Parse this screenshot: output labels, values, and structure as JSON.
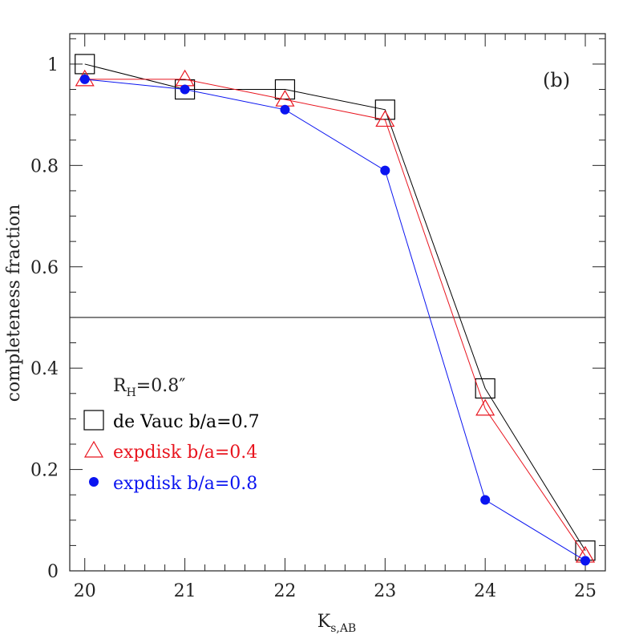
{
  "chart_data": {
    "type": "line",
    "panel_label": "(b)",
    "xlabel": "K",
    "xlabel_sub": "s,AB",
    "ylabel": "completeness fraction",
    "xlim": [
      19.85,
      25.2
    ],
    "ylim": [
      0,
      1.06
    ],
    "x_ticks": [
      "20",
      "21",
      "22",
      "23",
      "24",
      "25"
    ],
    "x_tick_values": [
      20,
      21,
      22,
      23,
      24,
      25
    ],
    "y_ticks": [
      "0",
      "0.2",
      "0.4",
      "0.6",
      "0.8",
      "1"
    ],
    "y_tick_values": [
      0,
      0.2,
      0.4,
      0.6,
      0.8,
      1.0
    ],
    "reference_line": 0.5,
    "legend_header": {
      "text": "R",
      "sub": "H",
      "rest": "=0.8″"
    },
    "series": [
      {
        "name": "de Vauc b/a=0.7",
        "marker": "square",
        "color": "#000000",
        "x": [
          20,
          21,
          22,
          23,
          24,
          25
        ],
        "y": [
          1.0,
          0.95,
          0.95,
          0.91,
          0.36,
          0.04
        ]
      },
      {
        "name": "expdisk b/a=0.4",
        "marker": "triangle",
        "color": "#e8141e",
        "x": [
          20,
          21,
          22,
          23,
          24,
          25
        ],
        "y": [
          0.97,
          0.97,
          0.93,
          0.89,
          0.32,
          0.03
        ]
      },
      {
        "name": "expdisk b/a=0.8",
        "marker": "circle",
        "color": "#0a14f0",
        "x": [
          20,
          21,
          22,
          23,
          24,
          25
        ],
        "y": [
          0.97,
          0.95,
          0.91,
          0.79,
          0.14,
          0.02
        ]
      }
    ]
  }
}
